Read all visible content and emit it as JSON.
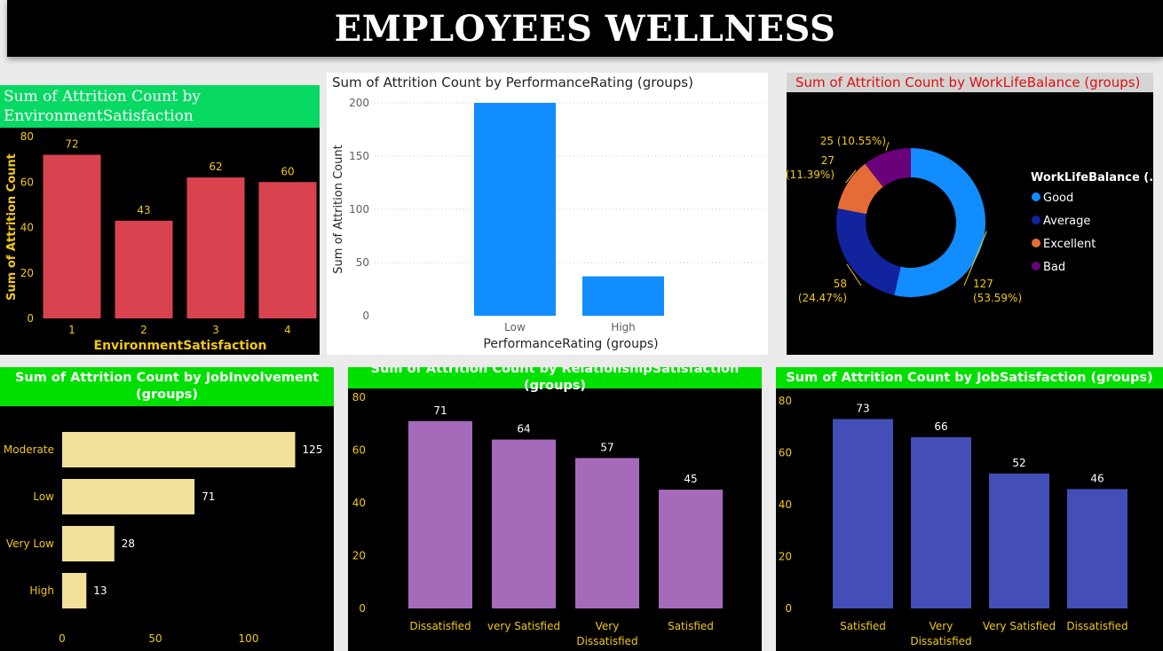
{
  "dashboard": {
    "title": "EMPLOYEES WELLNESS"
  },
  "chart_data": [
    {
      "id": "env",
      "type": "bar",
      "title": "Sum of Attrition Count by EnvironmentSatisfaction",
      "xlabel": "EnvironmentSatisfaction",
      "ylabel": "Sum of Attrition Count",
      "categories": [
        "1",
        "2",
        "3",
        "4"
      ],
      "values": [
        72,
        43,
        62,
        60
      ],
      "ylim": [
        0,
        80
      ],
      "yticks": [
        0,
        20,
        40,
        60,
        80
      ],
      "bar_color": "#d9434f",
      "grid": false,
      "data_labels": true
    },
    {
      "id": "perf",
      "type": "bar",
      "title": "Sum of Attrition Count by PerformanceRating (groups)",
      "xlabel": "PerformanceRating (groups)",
      "ylabel": "Sum of Attrition Count",
      "categories": [
        "Low",
        "High"
      ],
      "values": [
        200,
        37
      ],
      "ylim": [
        0,
        200
      ],
      "yticks": [
        0,
        50,
        100,
        150,
        200
      ],
      "bar_color": "#118dff",
      "grid": true,
      "data_labels": false
    },
    {
      "id": "wlb",
      "type": "pie",
      "subtype": "donut",
      "title": "Sum of Attrition Count by WorkLifeBalance (groups)",
      "legend_title": "WorkLifeBalance (...",
      "legend_position": "right",
      "slices": [
        {
          "name": "Good",
          "value": 127,
          "label_value": "127",
          "label_pct": "(53.59%)",
          "color": "#118dff"
        },
        {
          "name": "Average",
          "value": 58,
          "label_value": "58",
          "label_pct": "(24.47%)",
          "color": "#12239e"
        },
        {
          "name": "Excellent",
          "value": 27,
          "label_value": "27",
          "label_pct": "(11.39%)",
          "color": "#e66c37"
        },
        {
          "name": "Bad",
          "value": 25,
          "label_value": "25 (10.55%)",
          "label_pct": "",
          "color": "#6b007b"
        }
      ]
    },
    {
      "id": "job_inv",
      "type": "bar",
      "orientation": "horizontal",
      "title": "Sum of Attrition Count by JobInvolvement (groups)",
      "categories": [
        "Moderate",
        "Low",
        "Very Low",
        "High"
      ],
      "values": [
        125,
        71,
        28,
        13
      ],
      "xlim": [
        0,
        130
      ],
      "xticks": [
        0,
        50,
        100
      ],
      "bar_color": "#f1e19a",
      "grid": false,
      "data_labels": true
    },
    {
      "id": "rel_sat",
      "type": "bar",
      "title": "Sum of Attrition Count by RelationshipSatisfaction (groups)",
      "categories": [
        "Dissatisfied",
        "very Satisfied",
        "Very Dissatisfied",
        "Satisfied"
      ],
      "values": [
        71,
        64,
        57,
        45
      ],
      "ylim": [
        0,
        80
      ],
      "yticks": [
        0,
        20,
        40,
        60,
        80
      ],
      "bar_color": "#a66aba",
      "grid": false,
      "data_labels": true
    },
    {
      "id": "job_sat",
      "type": "bar",
      "title": "Sum of Attrition Count by JobSatisfaction (groups)",
      "categories": [
        "Satisfied",
        "Very Dissatisfied",
        "Very Satisfied",
        "Dissatisfied"
      ],
      "values": [
        73,
        66,
        52,
        46
      ],
      "ylim": [
        0,
        80
      ],
      "yticks": [
        0,
        20,
        40,
        60,
        80
      ],
      "bar_color": "#434fb7",
      "grid": false,
      "data_labels": true
    }
  ]
}
